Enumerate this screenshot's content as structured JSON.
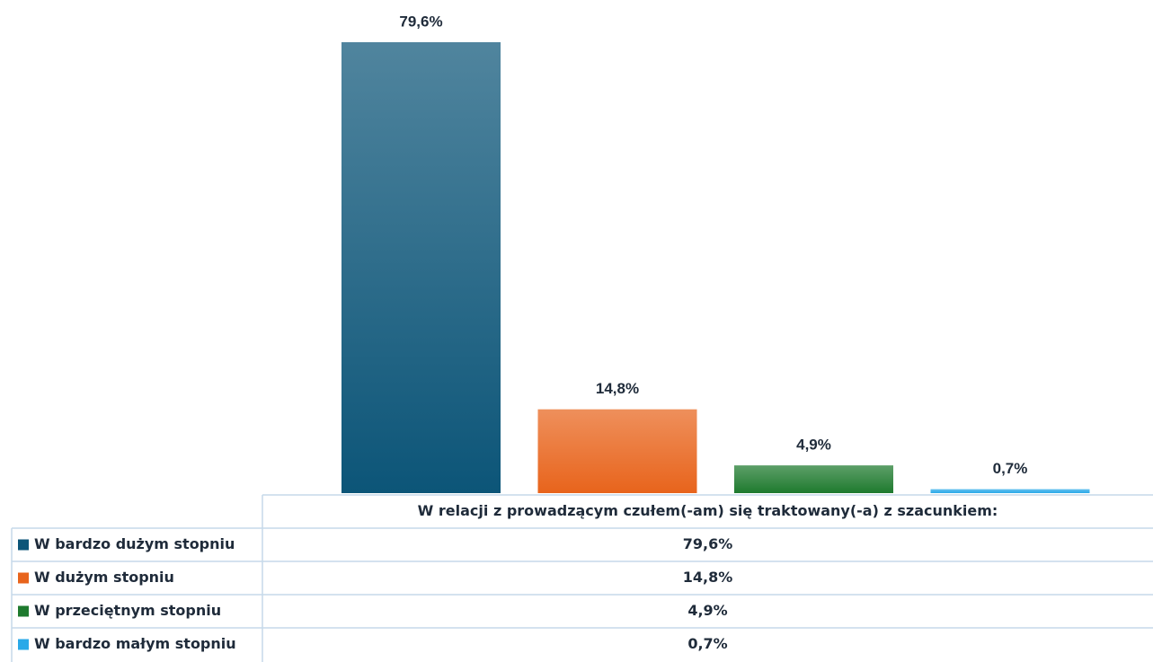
{
  "chart_data": {
    "type": "bar",
    "categories": [
      "W relacji z prowadzącym czułem(-am) się traktowany(-a) z szacunkiem:"
    ],
    "series": [
      {
        "name": "W bardzo dużym stopniu",
        "color": "#0c5578",
        "values": [
          79.6
        ],
        "value_labels": [
          "79,6%"
        ]
      },
      {
        "name": "W dużym stopniu",
        "color": "#e8641c",
        "values": [
          14.8
        ],
        "value_labels": [
          "14,8%"
        ]
      },
      {
        "name": "W przeciętnym stopniu",
        "color": "#1e7a2e",
        "values": [
          4.9
        ],
        "value_labels": [
          "4,9%"
        ]
      },
      {
        "name": "W bardzo małym stopniu",
        "color": "#29a9e8",
        "values": [
          0.7
        ],
        "value_labels": [
          "0,7%"
        ]
      }
    ]
  }
}
